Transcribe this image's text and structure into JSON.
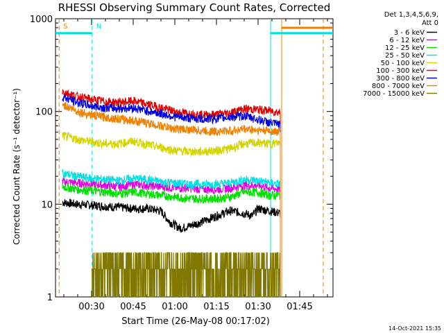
{
  "page": {
    "title": "RHESSI Observing Summary Count Rates, Corrected",
    "footer_timestamp": "14-Oct-2021 15:35"
  },
  "chart_data": {
    "type": "line",
    "title": "RHESSI Observing Summary Count Rates, Corrected",
    "xlabel": "Start Time (26-May-08 00:17:02)",
    "ylabel": "Corrected Count Rate (s⁻¹ detector⁻¹)",
    "y_scale": "log",
    "ylim": [
      1,
      1000
    ],
    "xlim_minutes_after_midnight": [
      17.0,
      117.0
    ],
    "x_ticks": [
      {
        "label": "00:30",
        "minutes": 30
      },
      {
        "label": "00:45",
        "minutes": 45
      },
      {
        "label": "01:00",
        "minutes": 60
      },
      {
        "label": "01:15",
        "minutes": 75
      },
      {
        "label": "01:30",
        "minutes": 90
      },
      {
        "label": "01:45",
        "minutes": 105
      }
    ],
    "y_ticks": [
      {
        "label": "1",
        "value": 1
      },
      {
        "label": "10",
        "value": 10
      },
      {
        "label": "100",
        "value": 100
      },
      {
        "label": "1000",
        "value": 1000
      }
    ],
    "legend": {
      "header_lines": [
        "Det 1,3,4,5,6,9,",
        "Att 0"
      ],
      "placement": "right"
    },
    "series": [
      {
        "name": "3 - 6 keV",
        "color": "#000000",
        "x": [
          19.5,
          25,
          30,
          35,
          40,
          45,
          50,
          55,
          58,
          62,
          65,
          70,
          75,
          80,
          85,
          88,
          90,
          94,
          98
        ],
        "y": [
          10.5,
          10.0,
          9.8,
          9.5,
          9.3,
          9.0,
          9.0,
          8.5,
          6.5,
          5.5,
          5.8,
          6.5,
          7.5,
          8.5,
          8.0,
          7.5,
          9.0,
          8.5,
          8.0
        ]
      },
      {
        "name": "6 - 12 keV",
        "color": "#e000e0",
        "x": [
          19.5,
          25,
          30,
          35,
          40,
          45,
          50,
          55,
          60,
          65,
          70,
          75,
          80,
          85,
          90,
          94,
          98
        ],
        "y": [
          17.5,
          17.0,
          16.5,
          16.0,
          15.5,
          16.5,
          16.0,
          15.5,
          15.0,
          15.0,
          14.5,
          14.5,
          15.0,
          16.0,
          16.0,
          15.0,
          14.5
        ]
      },
      {
        "name": "12 - 25 keV",
        "color": "#00e000",
        "x": [
          19.5,
          25,
          30,
          35,
          40,
          45,
          50,
          55,
          60,
          65,
          70,
          75,
          80,
          85,
          90,
          94,
          98
        ],
        "y": [
          15.5,
          14.5,
          14.0,
          13.5,
          13.0,
          13.5,
          13.0,
          12.5,
          12.0,
          11.5,
          11.5,
          11.5,
          12.0,
          13.5,
          13.5,
          12.5,
          12.5
        ]
      },
      {
        "name": "25 - 50 keV",
        "color": "#00e0e0",
        "x": [
          19.5,
          25,
          30,
          35,
          40,
          45,
          50,
          55,
          60,
          65,
          70,
          75,
          80,
          85,
          90,
          94,
          98
        ],
        "y": [
          21.5,
          20.0,
          19.0,
          18.5,
          18.0,
          19.0,
          18.5,
          17.5,
          17.0,
          16.5,
          16.5,
          16.5,
          17.0,
          18.5,
          18.0,
          17.0,
          16.5
        ]
      },
      {
        "name": "50 - 100 keV",
        "color": "#d4d400",
        "x": [
          19.5,
          25,
          30,
          35,
          40,
          45,
          50,
          55,
          60,
          65,
          70,
          75,
          80,
          85,
          90,
          94,
          98
        ],
        "y": [
          55,
          50,
          47,
          45,
          45,
          48,
          44,
          41,
          38,
          37,
          37,
          38,
          40,
          45,
          46,
          45,
          46
        ]
      },
      {
        "name": "100 - 300 keV",
        "color": "#e00000",
        "x": [
          19.5,
          25,
          30,
          35,
          40,
          45,
          50,
          55,
          60,
          65,
          70,
          75,
          80,
          85,
          90,
          94,
          98
        ],
        "y": [
          165,
          145,
          135,
          128,
          125,
          130,
          120,
          110,
          100,
          95,
          92,
          93,
          97,
          107,
          105,
          102,
          98
        ]
      },
      {
        "name": "300 - 800 keV",
        "color": "#0000e0",
        "x": [
          19.5,
          25,
          30,
          35,
          40,
          45,
          50,
          55,
          60,
          65,
          70,
          75,
          80,
          85,
          90,
          94,
          98
        ],
        "y": [
          145,
          125,
          115,
          110,
          108,
          110,
          102,
          95,
          88,
          85,
          83,
          84,
          87,
          90,
          82,
          76,
          72
        ]
      },
      {
        "name": "800 - 7000 keV",
        "color": "#f08000",
        "x": [
          19.5,
          25,
          30,
          35,
          40,
          45,
          50,
          55,
          60,
          65,
          70,
          75,
          80,
          85,
          90,
          94,
          98
        ],
        "y": [
          120,
          100,
          92,
          87,
          83,
          80,
          75,
          70,
          65,
          64,
          62,
          61,
          62,
          65,
          63,
          62,
          60
        ]
      },
      {
        "name": "7000 - 15000 keV",
        "color": "#807800",
        "x": [
          30,
          40,
          45,
          50,
          60,
          70,
          80,
          90,
          98
        ],
        "y": [
          1.8,
          1.9,
          2.5,
          2.2,
          1.8,
          1.7,
          2.6,
          2.4,
          1.9
        ]
      }
    ],
    "annotations": [
      {
        "text": "S",
        "color": "#f08000",
        "x_minutes": 18.3
      },
      {
        "text": "N",
        "color": "#00e0e0",
        "x_minutes": 30.2
      }
    ],
    "bars": [
      {
        "color": "#00e0e0",
        "x0": 17.0,
        "x1": 30.2,
        "y": 700
      },
      {
        "color": "#00e0e0",
        "x0": 94.5,
        "x1": 117.0,
        "y": 700
      },
      {
        "color": "#f08000",
        "x0": 98.5,
        "x1": 117.0,
        "y": 800
      }
    ],
    "vertical_markers": [
      {
        "color": "#f08000",
        "style": "dashed",
        "x_minutes": 18.3
      },
      {
        "color": "#00e0e0",
        "style": "dashed",
        "x_minutes": 30.2
      },
      {
        "color": "#00e0e0",
        "style": "solid",
        "x_minutes": 94.5
      },
      {
        "color": "#f08000",
        "style": "solid",
        "x_minutes": 98.5
      },
      {
        "color": "#f08000",
        "style": "dashed",
        "x_minutes": 113.5
      }
    ]
  }
}
